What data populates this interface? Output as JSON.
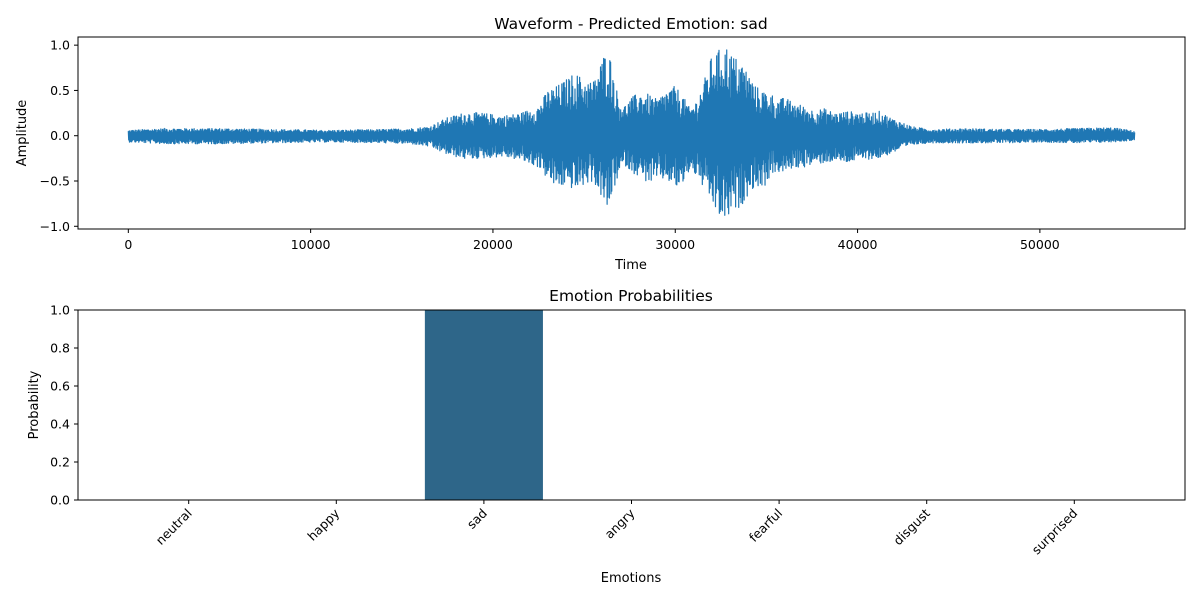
{
  "chart_data": [
    {
      "type": "line",
      "title": "Waveform - Predicted Emotion: sad",
      "xlabel": "Time",
      "ylabel": "Amplitude",
      "xlim": [
        -2760,
        57960
      ],
      "ylim": [
        -1.03,
        1.09
      ],
      "xticks": [
        0,
        10000,
        20000,
        30000,
        40000,
        50000
      ],
      "xtick_labels": [
        "0",
        "10000",
        "20000",
        "30000",
        "40000",
        "50000"
      ],
      "yticks": [
        -1.0,
        -0.5,
        0.0,
        0.5,
        1.0
      ],
      "ytick_labels": [
        "−1.0",
        "−0.5",
        "0.0",
        "0.5",
        "1.0"
      ],
      "series": [
        {
          "color": "#1f77b4",
          "n_samples": 55200,
          "envelope": {
            "x": [
              0,
              2000,
              5000,
              8000,
              11000,
              14000,
              15500,
              16500,
              17500,
              18500,
              19500,
              20500,
              21500,
              22500,
              23000,
              23500,
              24000,
              24500,
              25000,
              25500,
              26000,
              26300,
              26600,
              26900,
              27200,
              27600,
              28000,
              28500,
              29000,
              29500,
              30000,
              30400,
              30800,
              31200,
              31600,
              32000,
              32400,
              32800,
              33100,
              33400,
              33700,
              34000,
              34400,
              34800,
              35200,
              35600,
              36000,
              36400,
              37000,
              37600,
              38200,
              38800,
              39400,
              40000,
              40600,
              41200,
              41800,
              42400,
              43000,
              44000,
              46000,
              48000,
              50000,
              52000,
              54000,
              55200
            ],
            "upper": [
              0.06,
              0.08,
              0.08,
              0.07,
              0.06,
              0.07,
              0.08,
              0.1,
              0.2,
              0.26,
              0.25,
              0.22,
              0.25,
              0.33,
              0.5,
              0.55,
              0.62,
              0.7,
              0.62,
              0.6,
              0.85,
              1.0,
              0.7,
              0.4,
              0.33,
              0.42,
              0.48,
              0.46,
              0.4,
              0.5,
              0.55,
              0.45,
              0.3,
              0.4,
              0.62,
              0.88,
              0.95,
              1.0,
              0.9,
              0.85,
              0.8,
              0.7,
              0.55,
              0.5,
              0.48,
              0.4,
              0.42,
              0.38,
              0.33,
              0.28,
              0.3,
              0.25,
              0.27,
              0.26,
              0.25,
              0.27,
              0.2,
              0.15,
              0.1,
              0.07,
              0.08,
              0.07,
              0.07,
              0.08,
              0.09,
              0.05
            ],
            "lower": [
              -0.07,
              -0.09,
              -0.09,
              -0.08,
              -0.07,
              -0.08,
              -0.09,
              -0.12,
              -0.21,
              -0.26,
              -0.25,
              -0.23,
              -0.27,
              -0.35,
              -0.48,
              -0.58,
              -0.55,
              -0.6,
              -0.55,
              -0.5,
              -0.7,
              -0.85,
              -0.6,
              -0.45,
              -0.32,
              -0.4,
              -0.45,
              -0.52,
              -0.5,
              -0.48,
              -0.58,
              -0.55,
              -0.38,
              -0.45,
              -0.6,
              -0.75,
              -0.9,
              -0.95,
              -0.85,
              -0.82,
              -0.75,
              -0.65,
              -0.55,
              -0.6,
              -0.45,
              -0.4,
              -0.42,
              -0.36,
              -0.35,
              -0.32,
              -0.3,
              -0.28,
              -0.3,
              -0.27,
              -0.26,
              -0.25,
              -0.2,
              -0.15,
              -0.1,
              -0.08,
              -0.08,
              -0.08,
              -0.07,
              -0.08,
              -0.07,
              -0.05
            ]
          }
        }
      ]
    },
    {
      "type": "bar",
      "title": "Emotion Probabilities",
      "xlabel": "Emotions",
      "ylabel": "Probability",
      "categories": [
        "neutral",
        "happy",
        "sad",
        "angry",
        "fearful",
        "disgust",
        "surprised"
      ],
      "values": [
        0.0,
        0.0,
        1.0,
        0.0,
        0.0,
        0.0,
        0.0
      ],
      "ylim": [
        0,
        1.0
      ],
      "yticks": [
        0.0,
        0.2,
        0.4,
        0.6,
        0.8,
        1.0
      ],
      "ytick_labels": [
        "0.0",
        "0.2",
        "0.4",
        "0.6",
        "0.8",
        "1.0"
      ],
      "color": "#2e6689"
    }
  ]
}
